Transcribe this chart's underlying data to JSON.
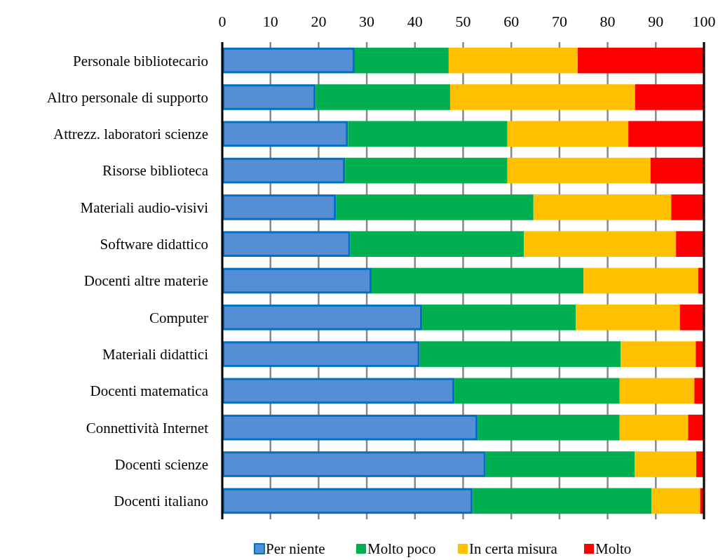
{
  "chart_data": {
    "type": "bar",
    "orientation": "horizontal",
    "stacked": true,
    "categories": [
      "Personale bibliotecario",
      "Altro personale di supporto",
      "Attrezz. laboratori scienze",
      "Risorse biblioteca",
      "Materiali audio-visivi",
      "Software didattico",
      "Docenti altre materie",
      "Computer",
      "Materiali didattici",
      "Docenti matematica",
      "Connettività Internet",
      "Docenti scienze",
      "Docenti italiano"
    ],
    "series": [
      {
        "name": "Per niente",
        "color": "#558ed5",
        "values": [
          27.5,
          19.4,
          26.1,
          25.5,
          23.6,
          26.6,
          31.0,
          41.5,
          41.0,
          48.2,
          53.0,
          54.7,
          52.0
        ]
      },
      {
        "name": "Molto poco",
        "color": "#00b050",
        "values": [
          19.5,
          27.9,
          33.1,
          33.7,
          41.0,
          36.0,
          44.0,
          31.9,
          41.7,
          34.3,
          29.5,
          30.9,
          37.1
        ]
      },
      {
        "name": "In certa misura",
        "color": "#ffc000",
        "values": [
          26.8,
          38.4,
          25.1,
          29.7,
          28.6,
          31.6,
          23.8,
          21.6,
          15.6,
          15.5,
          14.2,
          12.8,
          10.1
        ]
      },
      {
        "name": "Molto",
        "color": "#ff0000",
        "values": [
          26.2,
          14.3,
          15.7,
          11.1,
          6.8,
          5.8,
          1.2,
          5.0,
          1.7,
          2.0,
          3.3,
          1.6,
          0.8
        ]
      }
    ],
    "xlim": [
      0,
      100
    ],
    "xticks": [
      0,
      10,
      20,
      30,
      40,
      50,
      60,
      70,
      80,
      90,
      100
    ],
    "grid": "x",
    "legend": "bottom"
  }
}
